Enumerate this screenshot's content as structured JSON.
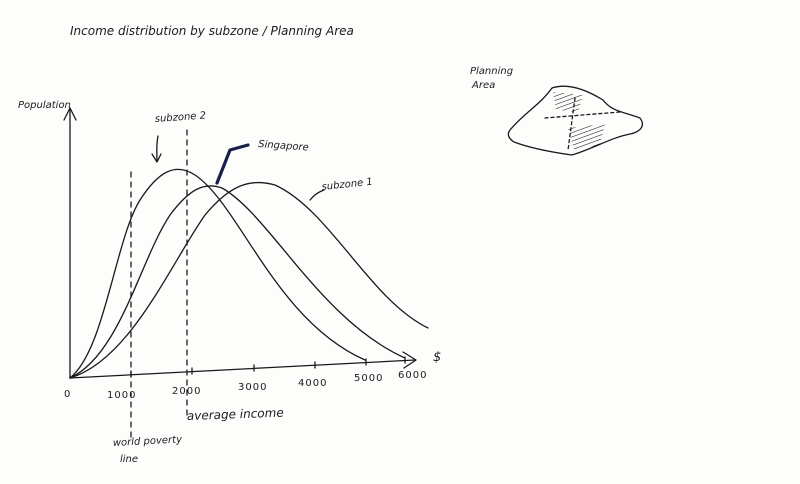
{
  "title": "Income distribution by subzone / Planning Area",
  "axes": {
    "y_label": "Population",
    "x_unit": "$",
    "origin_label": "0",
    "x_ticks": [
      "1000",
      "2000",
      "3000",
      "4000",
      "5000",
      "6000"
    ]
  },
  "curves": {
    "subzone2_label": "subzone 2",
    "singapore_label": "Singapore",
    "subzone1_label": "subzone 1"
  },
  "markers": {
    "average_income_label": "average income",
    "poverty_line_label_1": "world poverty",
    "poverty_line_label_2": "line"
  },
  "planning_area": {
    "label_1": "Planning",
    "label_2": "Area"
  },
  "colors": {
    "ink": "#1a1a1a",
    "highlight_stroke": "#1a1f4a"
  }
}
